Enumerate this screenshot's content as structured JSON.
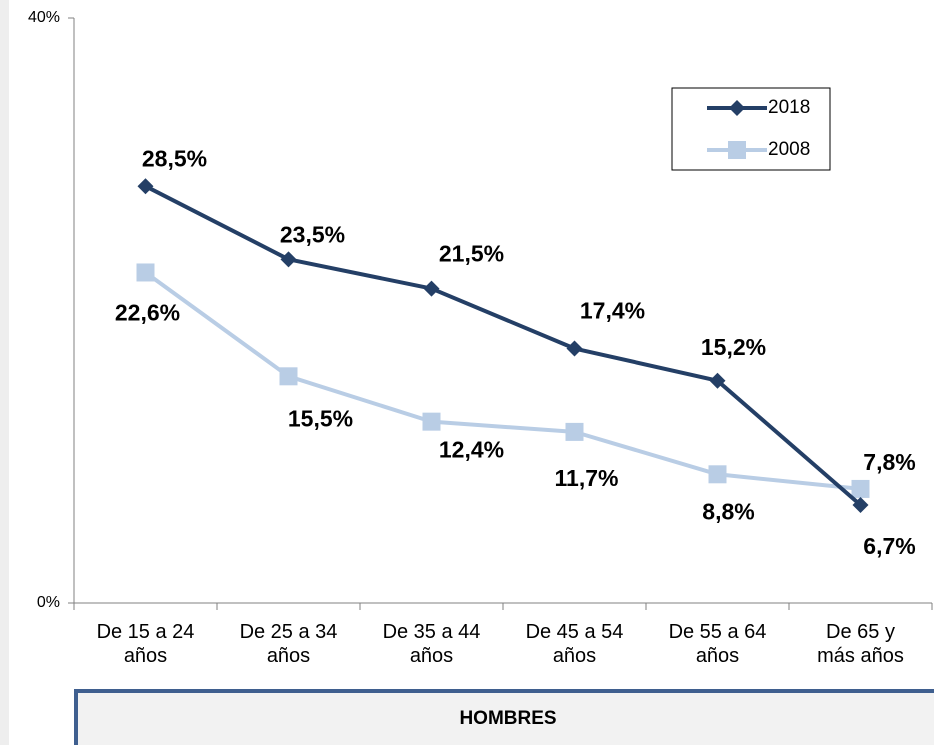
{
  "chart_data": {
    "type": "line",
    "categories": [
      "De 15 a 24\naños",
      "De 25 a 34\naños",
      "De 35 a 44\naños",
      "De 45 a 54\naños",
      "De 55 a 64\naños",
      "De 65 y\nmás años"
    ],
    "series": [
      {
        "name": "2018",
        "color": "#243f66",
        "marker": "diamond",
        "values": [
          28.5,
          23.5,
          21.5,
          17.4,
          15.2,
          6.7
        ],
        "value_labels": [
          "28,5%",
          "23,5%",
          "21,5%",
          "17,4%",
          "15,2%",
          "6,7%"
        ]
      },
      {
        "name": "2008",
        "color": "#b9cde5",
        "marker": "square",
        "values": [
          22.6,
          15.5,
          12.4,
          11.7,
          8.8,
          7.8
        ],
        "value_labels": [
          "22,6%",
          "15,5%",
          "12,4%",
          "11,7%",
          "8,8%",
          "7,8%"
        ]
      }
    ],
    "ylim": [
      0,
      40
    ],
    "yticks": [
      {
        "value": 0,
        "label": "0%"
      },
      {
        "value": 40,
        "label": "40%"
      }
    ],
    "legend": "top-right",
    "panel_label": "HOMBRES"
  }
}
